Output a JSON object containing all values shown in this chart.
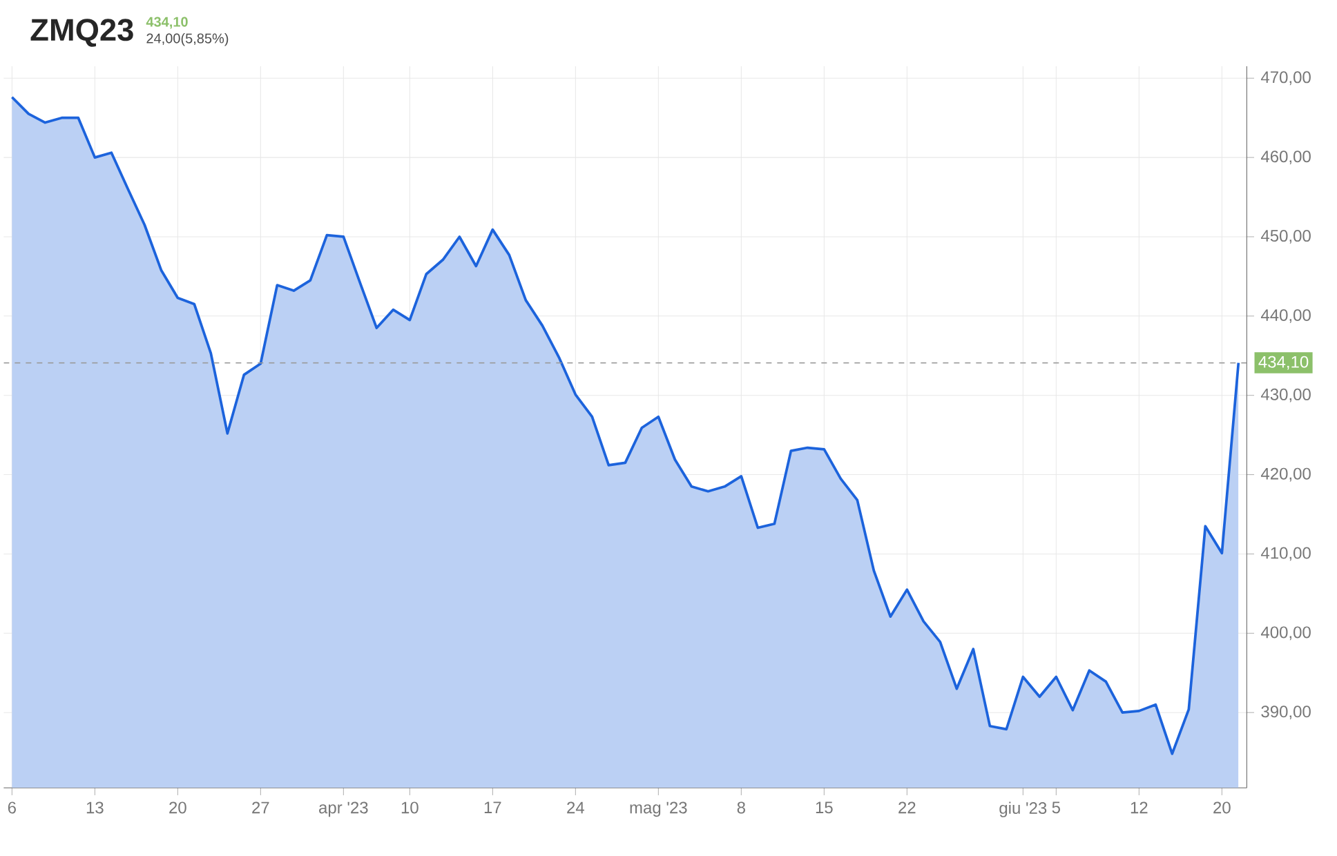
{
  "chart_data": {
    "type": "area",
    "title": "ZMQ23",
    "subtitle": "434,10",
    "annotations": [
      "24,00(5,85%)"
    ],
    "categories": [
      "6",
      null,
      null,
      null,
      null,
      "13",
      null,
      null,
      null,
      null,
      "20",
      null,
      null,
      null,
      null,
      "27",
      null,
      null,
      null,
      null,
      "apr '23",
      null,
      null,
      null,
      "10",
      null,
      null,
      null,
      null,
      "17",
      null,
      null,
      null,
      null,
      "24",
      null,
      null,
      null,
      null,
      "mag '23",
      null,
      null,
      null,
      null,
      "8",
      null,
      null,
      null,
      null,
      "15",
      null,
      null,
      null,
      null,
      "22",
      null,
      null,
      null,
      null,
      null,
      null,
      "giu '23",
      null,
      "5",
      null,
      null,
      null,
      null,
      "12",
      null,
      null,
      null,
      null,
      "20",
      null
    ],
    "values": [
      467.6,
      465.5,
      464.4,
      465.0,
      465.0,
      460.0,
      460.6,
      456.0,
      451.5,
      445.8,
      442.3,
      441.5,
      435.3,
      425.2,
      432.6,
      434.0,
      443.9,
      443.2,
      444.5,
      450.2,
      450.0,
      444.2,
      438.5,
      440.8,
      439.5,
      445.3,
      447.1,
      450.0,
      446.3,
      450.9,
      447.7,
      442.0,
      438.8,
      434.8,
      430.1,
      427.3,
      421.2,
      421.5,
      425.9,
      427.3,
      421.9,
      418.5,
      417.9,
      418.5,
      419.8,
      413.3,
      413.8,
      423.0,
      423.4,
      423.2,
      419.5,
      416.8,
      407.9,
      402.1,
      405.5,
      401.5,
      398.9,
      393.0,
      398.0,
      388.3,
      387.9,
      394.5,
      392.0,
      394.5,
      390.3,
      395.3,
      393.9,
      390.0,
      390.2,
      391.0,
      384.8,
      390.4,
      413.5,
      410.1,
      434.1
    ],
    "color": "#1c63dc",
    "ylim": [
      380.5,
      471.5
    ],
    "yticks": [
      {
        "value": 390,
        "label": "390,00"
      },
      {
        "value": 400,
        "label": "400,00"
      },
      {
        "value": 410,
        "label": "410,00"
      },
      {
        "value": 420,
        "label": "420,00"
      },
      {
        "value": 430,
        "label": "430,00"
      },
      {
        "value": 440,
        "label": "440,00"
      },
      {
        "value": 450,
        "label": "450,00"
      },
      {
        "value": 460,
        "label": "460,00"
      },
      {
        "value": 470,
        "label": "470,00"
      }
    ],
    "grid": true,
    "ref_lines": [
      {
        "axis": "y",
        "value": 434.1,
        "label": "434,10",
        "color": "#9a9a9a",
        "line_style": "dashed"
      }
    ]
  }
}
